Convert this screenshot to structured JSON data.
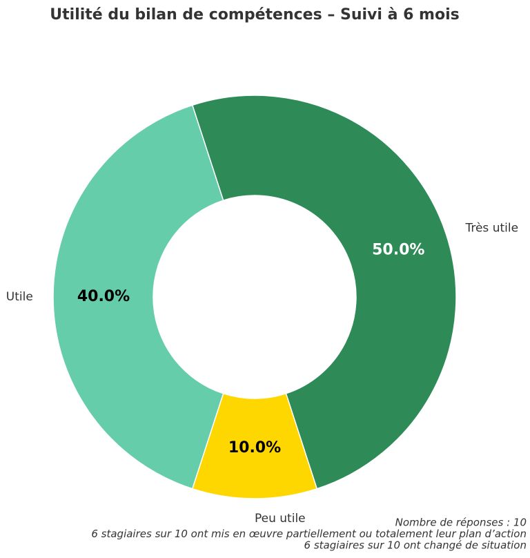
{
  "chart_data": {
    "type": "donut",
    "title": "Utilité du bilan de compétences – Suivi à 6 mois",
    "categories": [
      "Très utile",
      "Peu utile",
      "Utile"
    ],
    "values": [
      50,
      10,
      40
    ],
    "value_labels": [
      "50.0%",
      "10.0%",
      "40.0%"
    ],
    "colors": [
      "#2e8b57",
      "#ffd700",
      "#66cdaa"
    ],
    "value_label_colors": [
      "#ffffff",
      "#000000",
      "#000000"
    ],
    "startangle": 108,
    "counterclock": false,
    "annotations": [
      "Nombre de réponses : 10",
      "6 stagiaires sur 10 ont mis en œuvre partiellement ou totalement leur plan d’action",
      "6 stagiaires sur 10 ont changé de situation"
    ]
  }
}
